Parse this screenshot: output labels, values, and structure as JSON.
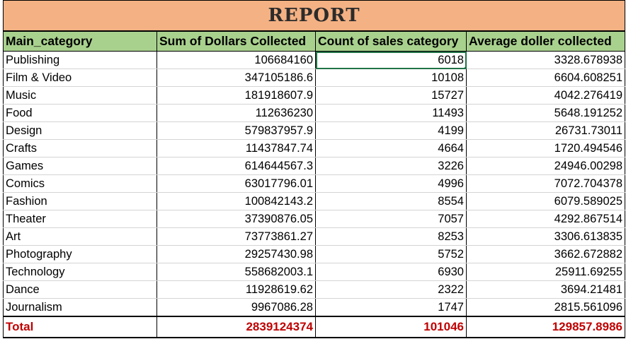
{
  "report": {
    "title": "REPORT",
    "columns": [
      "Main_category",
      "Sum of Dollars Collected",
      "Count of sales category",
      "Average doller collected"
    ],
    "rows": [
      {
        "category": "Publishing",
        "sum": "106684160",
        "count": "6018",
        "avg": "3328.678938"
      },
      {
        "category": "Film & Video",
        "sum": "347105186.6",
        "count": "10108",
        "avg": "6604.608251"
      },
      {
        "category": "Music",
        "sum": "181918607.9",
        "count": "15727",
        "avg": "4042.276419"
      },
      {
        "category": "Food",
        "sum": "112636230",
        "count": "11493",
        "avg": "5648.191252"
      },
      {
        "category": "Design",
        "sum": "579837957.9",
        "count": "4199",
        "avg": "26731.73011"
      },
      {
        "category": "Crafts",
        "sum": "11437847.74",
        "count": "4664",
        "avg": "1720.494546"
      },
      {
        "category": "Games",
        "sum": "614644567.3",
        "count": "3226",
        "avg": "24946.00298"
      },
      {
        "category": "Comics",
        "sum": "63017796.01",
        "count": "4996",
        "avg": "7072.704378"
      },
      {
        "category": "Fashion",
        "sum": "100842143.2",
        "count": "8554",
        "avg": "6079.589025"
      },
      {
        "category": "Theater",
        "sum": "37390876.05",
        "count": "7057",
        "avg": "4292.867514"
      },
      {
        "category": "Art",
        "sum": "73773861.27",
        "count": "8253",
        "avg": "3306.613835"
      },
      {
        "category": "Photography",
        "sum": "29257430.98",
        "count": "5752",
        "avg": "3662.672882"
      },
      {
        "category": "Technology",
        "sum": "558682003.1",
        "count": "6930",
        "avg": "25911.69255"
      },
      {
        "category": "Dance",
        "sum": "11928619.62",
        "count": "2322",
        "avg": "3694.21481"
      },
      {
        "category": "Journalism",
        "sum": "9967086.28",
        "count": "1747",
        "avg": "2815.561096"
      }
    ],
    "total": {
      "label": "Total",
      "sum": "2839124374",
      "count": "101046",
      "avg": "129857.8986"
    }
  },
  "selection": {
    "row": 0,
    "column": "count"
  },
  "colors": {
    "title_fill": "#f4b183",
    "header_fill": "#a9d18e",
    "total_text": "#c00000",
    "selection": "#217346"
  }
}
